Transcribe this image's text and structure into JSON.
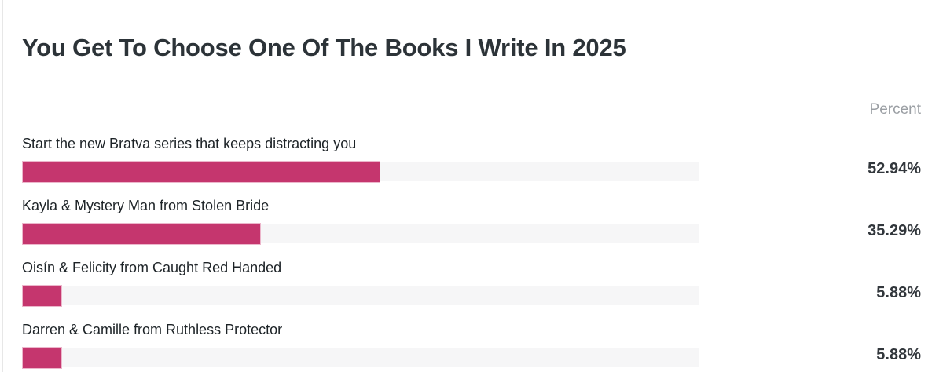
{
  "poll": {
    "title": "You Get To Choose One Of The Books I Write In 2025",
    "column_header": "Percent",
    "options": [
      {
        "label": "Start the new Bratva series that keeps distracting you",
        "percent": "52.94%"
      },
      {
        "label": "Kayla & Mystery Man from Stolen Bride",
        "percent": "35.29%"
      },
      {
        "label": "Oisín & Felicity from Caught Red Handed",
        "percent": "5.88%"
      },
      {
        "label": "Darren & Camille from Ruthless Protector",
        "percent": "5.88%"
      }
    ],
    "colors": {
      "bar_fill": "#c5366e",
      "bar_fill_border": "#ecb6cb",
      "bar_track": "#f6f6f7",
      "title_text": "#2c3338",
      "label_text": "#1d2327",
      "percent_header_text": "#9b9fa4",
      "percent_value_text": "#32373c",
      "panel_border": "#e7e7e7"
    }
  },
  "chart_data": {
    "type": "bar",
    "orientation": "horizontal",
    "title": "You Get To Choose One Of The Books I Write In 2025",
    "categories": [
      "Start the new Bratva series that keeps distracting you",
      "Kayla & Mystery Man from Stolen Bride",
      "Oisín & Felicity from Caught Red Handed",
      "Darren & Camille from Ruthless Protector"
    ],
    "values": [
      52.94,
      35.29,
      5.88,
      5.88
    ],
    "value_labels": [
      "52.94%",
      "35.29%",
      "5.88%",
      "5.88%"
    ],
    "value_column_header": "Percent",
    "xlim": [
      0,
      100
    ],
    "grid": false,
    "legend": false,
    "bar_color": "#c5366e"
  }
}
